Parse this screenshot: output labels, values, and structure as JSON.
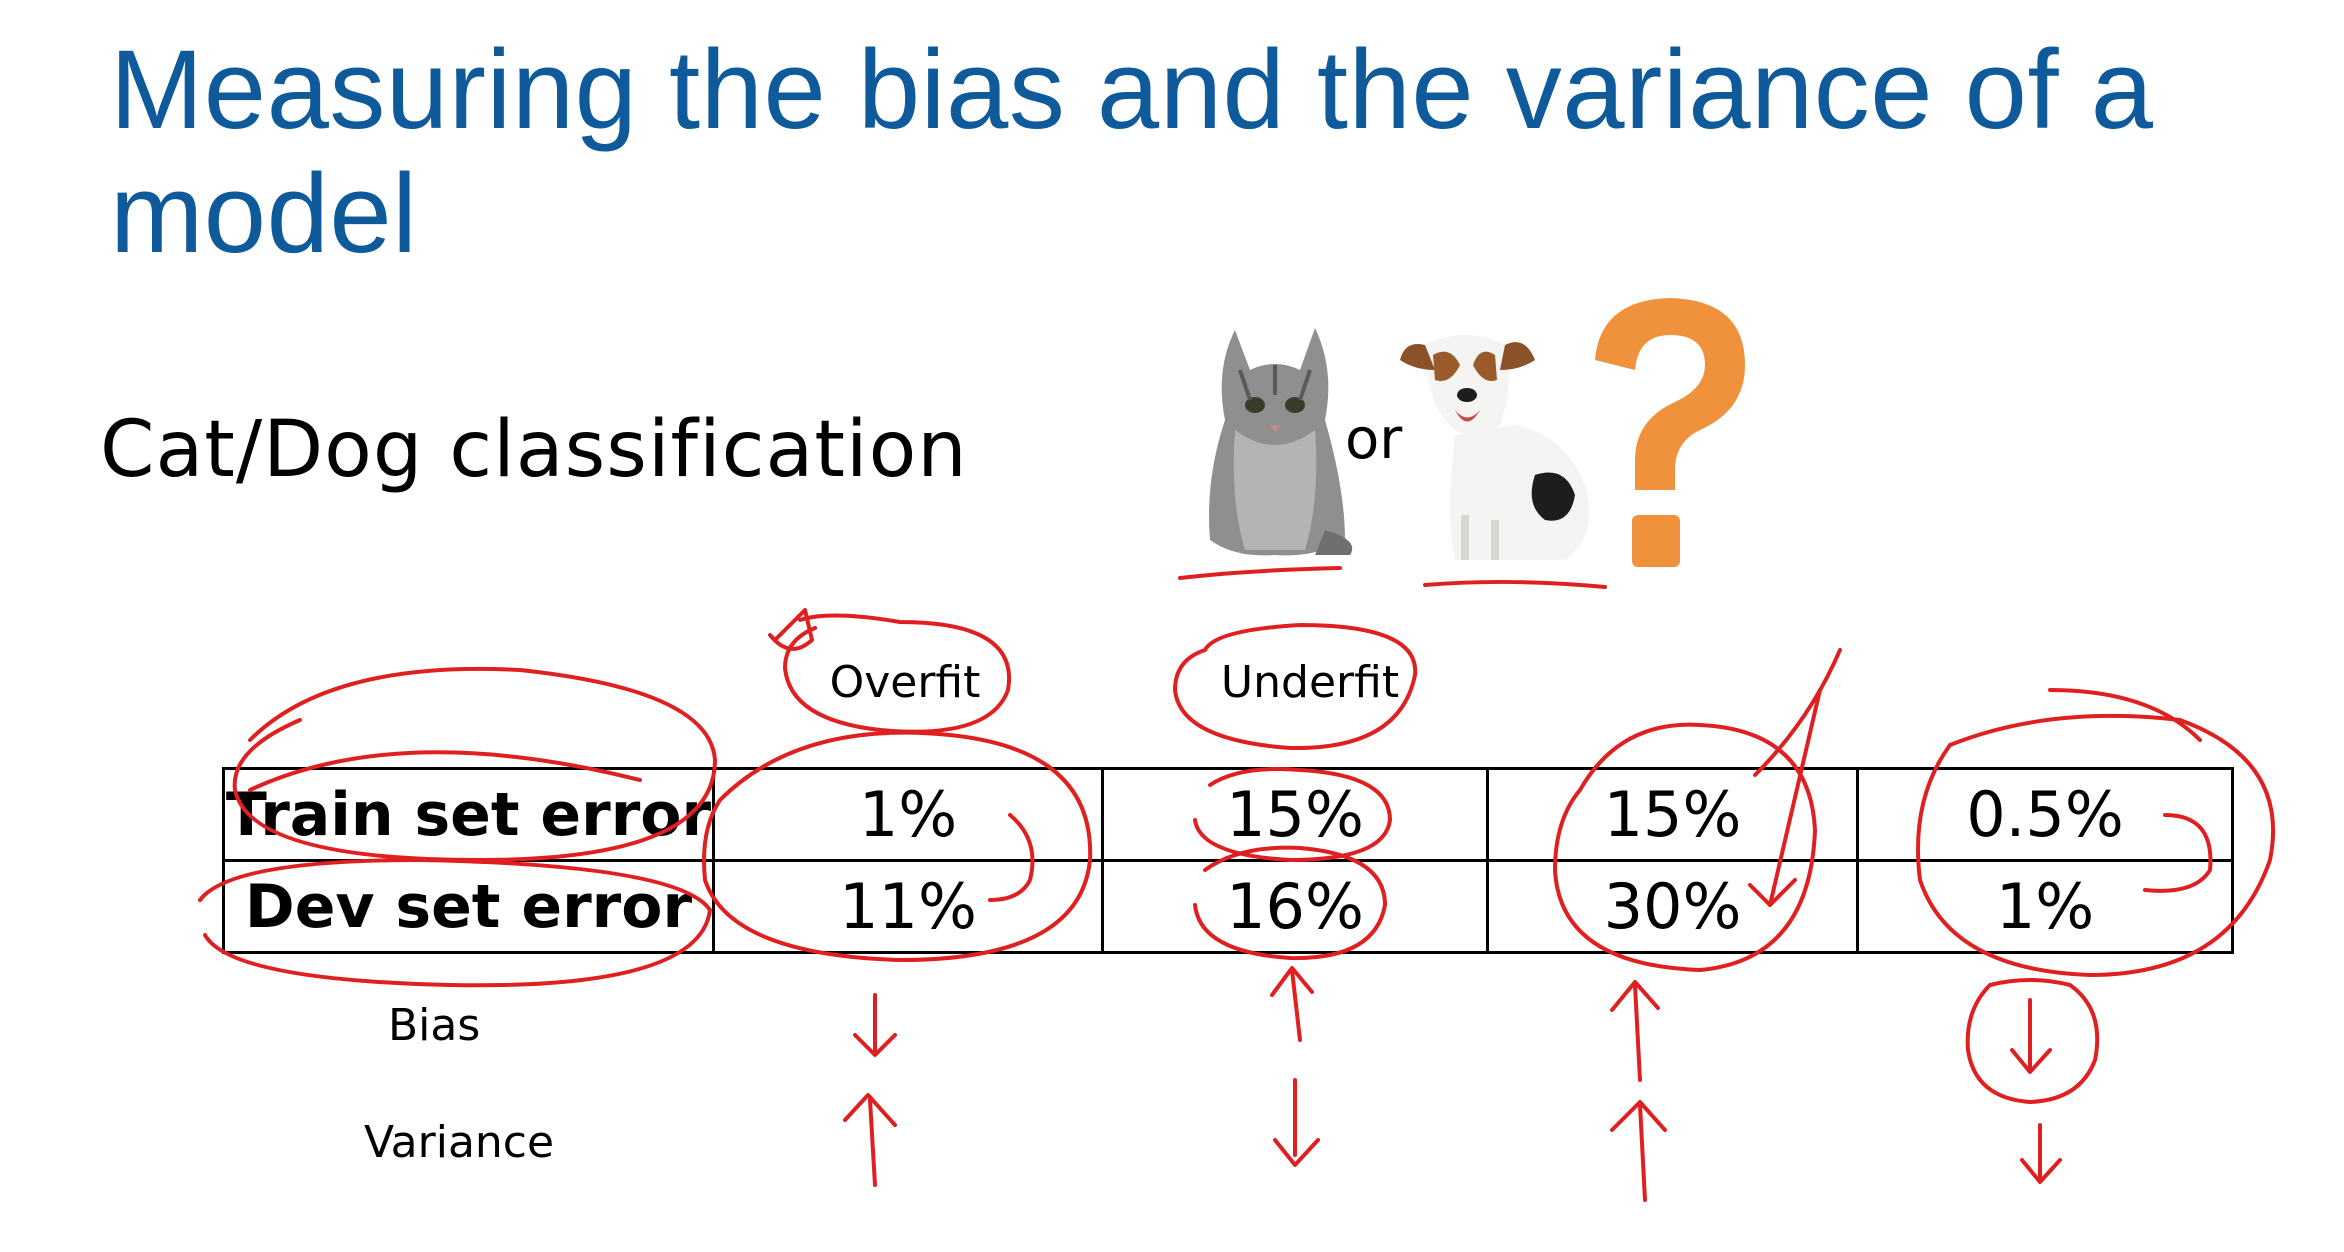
{
  "slide": {
    "title": "Measuring the bias and the variance of a model",
    "subtitle": "Cat/Dog classification",
    "or_text": "or",
    "images": {
      "cat": "cat-photo",
      "dog": "dog-photo",
      "question": "question-mark-icon"
    },
    "colors": {
      "title": "#0f5a9a",
      "question_mark": "#f0913c",
      "annotation_ink": "#e02020"
    }
  },
  "table": {
    "column_headers": [
      "Overfit",
      "Underfit",
      "",
      ""
    ],
    "rows": [
      {
        "label": "Train set error",
        "values": [
          "1%",
          "15%",
          "15%",
          "0.5%"
        ]
      },
      {
        "label": "Dev set error",
        "values": [
          "11%",
          "16%",
          "30%",
          "1%"
        ]
      }
    ],
    "row_labels_below": [
      "Bias",
      "Variance"
    ]
  }
}
